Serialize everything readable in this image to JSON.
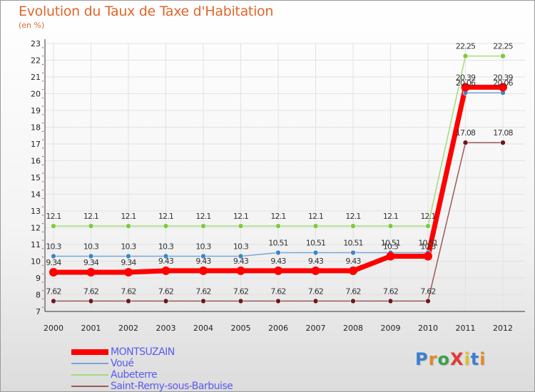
{
  "title": "Evolution du Taux de Taxe d'Habitation",
  "subtitle": "(en %)",
  "logo": "ProXiti",
  "chart_data": {
    "type": "line",
    "categories": [
      "2000",
      "2001",
      "2002",
      "2003",
      "2004",
      "2005",
      "2006",
      "2007",
      "2008",
      "2009",
      "2010",
      "2011",
      "2012"
    ],
    "ylim": [
      7,
      23
    ],
    "yticks": [
      7,
      8,
      9,
      10,
      11,
      12,
      13,
      14,
      15,
      16,
      17,
      18,
      19,
      20,
      21,
      22,
      23
    ],
    "series": [
      {
        "name": "MONTSUZAIN",
        "color": "#ff0000",
        "point_color": "#ff0000",
        "width": 7,
        "radius": 6,
        "values": [
          9.34,
          9.34,
          9.34,
          9.43,
          9.43,
          9.43,
          9.43,
          9.43,
          9.43,
          10.3,
          10.3,
          20.39,
          20.39
        ],
        "labels": [
          "9.34",
          "9.34",
          "9.34",
          "9.43",
          "9.43",
          "9.43",
          "9.43",
          "9.43",
          "9.43",
          "10.3",
          "10.3",
          "20.39",
          "20.39"
        ]
      },
      {
        "name": "Voué",
        "color": "#7aa6d6",
        "point_color": "#3d85c6",
        "width": 1.5,
        "radius": 3.5,
        "values": [
          10.3,
          10.3,
          10.3,
          10.3,
          10.3,
          10.3,
          10.51,
          10.51,
          10.51,
          10.51,
          10.51,
          20.06,
          20.06
        ],
        "labels": [
          "10.3",
          "10.3",
          "10.3",
          "10.3",
          "10.3",
          "10.3",
          "10.51",
          "10.51",
          "10.51",
          "10.51",
          "10.51",
          "20.06",
          "20.06"
        ]
      },
      {
        "name": "Aubeterre",
        "color": "#a3dc7a",
        "point_color": "#7ccc3c",
        "width": 1.5,
        "radius": 3.5,
        "values": [
          12.1,
          12.1,
          12.1,
          12.1,
          12.1,
          12.1,
          12.1,
          12.1,
          12.1,
          12.1,
          12.1,
          22.25,
          22.25
        ],
        "labels": [
          "12.1",
          "12.1",
          "12.1",
          "12.1",
          "12.1",
          "12.1",
          "12.1",
          "12.1",
          "12.1",
          "12.1",
          "12.1",
          "22.25",
          "22.25"
        ]
      },
      {
        "name": "Saint-Remy-sous-Barbuise",
        "color": "#9a5a5a",
        "point_color": "#6b1a1a",
        "width": 1.5,
        "radius": 3.5,
        "values": [
          7.62,
          7.62,
          7.62,
          7.62,
          7.62,
          7.62,
          7.62,
          7.62,
          7.62,
          7.62,
          7.62,
          17.08,
          17.08
        ],
        "labels": [
          "7.62",
          "7.62",
          "7.62",
          "7.62",
          "7.62",
          "7.62",
          "7.62",
          "7.62",
          "7.62",
          "7.62",
          "7.62",
          "17.08",
          "17.08"
        ]
      }
    ]
  }
}
